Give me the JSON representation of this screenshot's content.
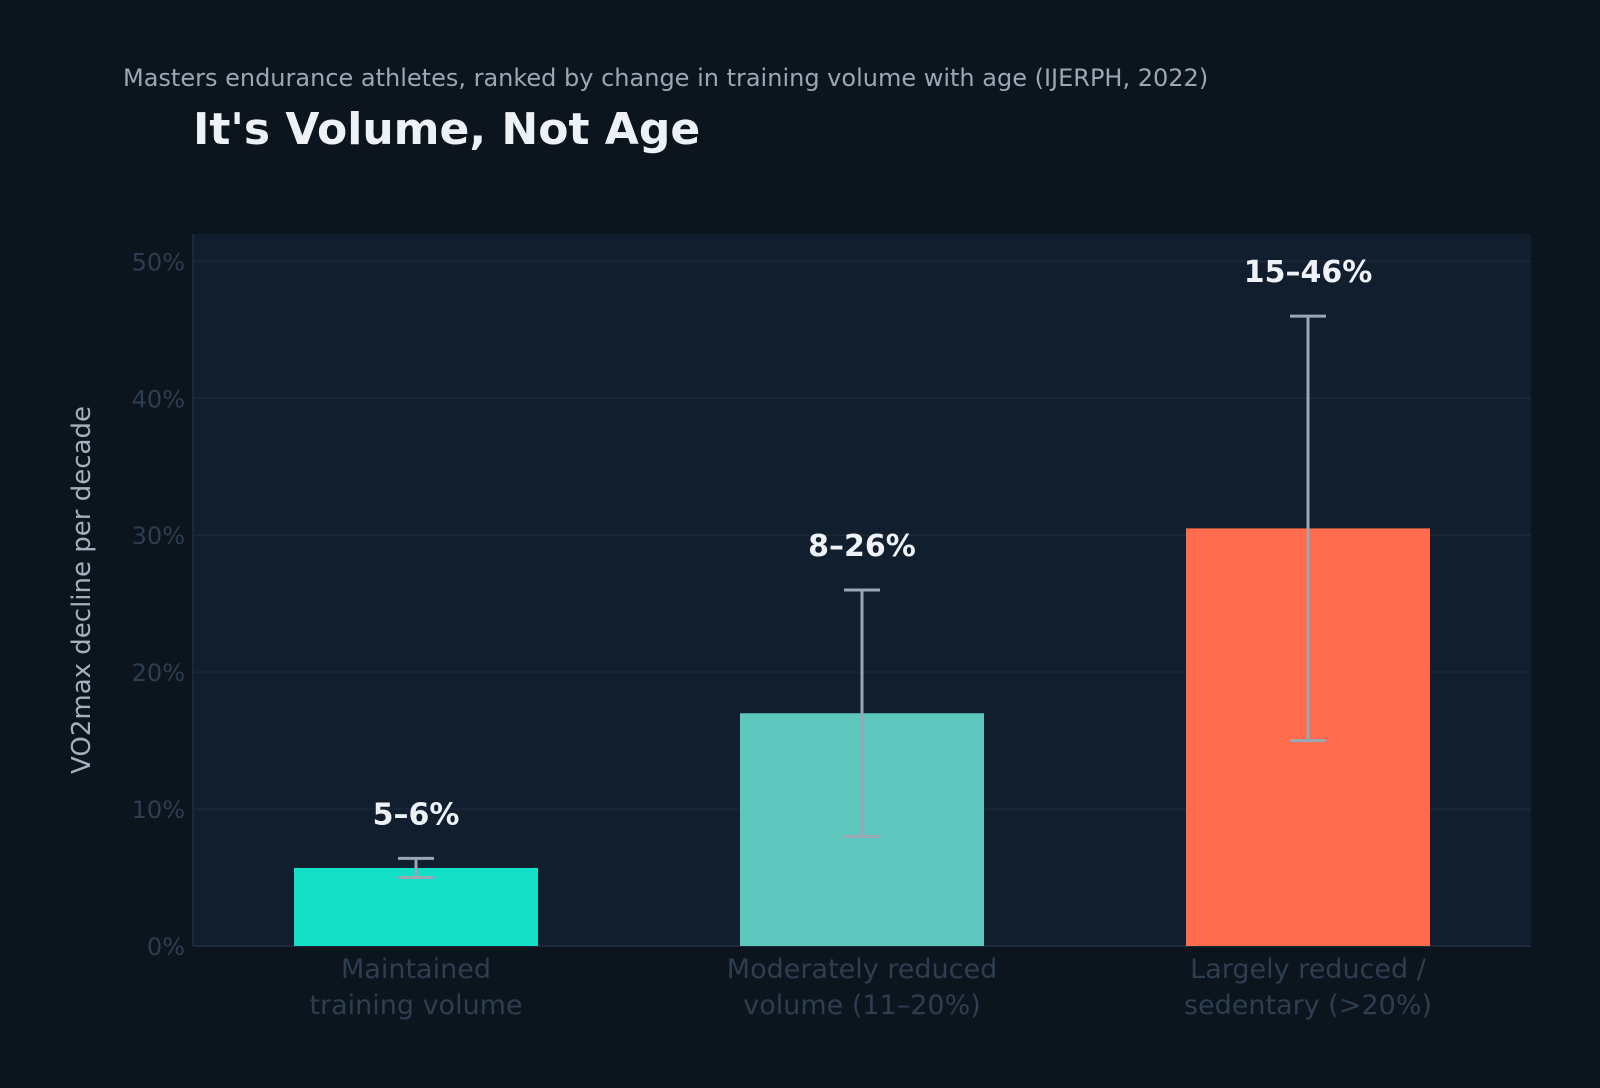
{
  "subtitle": "Masters endurance athletes, ranked by change in training volume with age (IJERPH, 2022)",
  "title": "It's Volume, Not Age",
  "colors": {
    "background": "#0c141e",
    "plot_area": "#111e2d",
    "grid": "#1a2838",
    "tick_text": "#2d3e50",
    "axis_label": "#a3b0bd",
    "error_bar": "#9aa7b4",
    "value_label": "#eef2f7"
  },
  "chart_data": {
    "type": "bar",
    "title": "It's Volume, Not Age",
    "subtitle": "Masters endurance athletes, ranked by change in training volume with age (IJERPH, 2022)",
    "xlabel": "",
    "ylabel": "VO2max decline per decade",
    "ylim": [
      0,
      52
    ],
    "yticks": [
      0,
      10,
      20,
      30,
      40,
      50
    ],
    "ytick_labels": [
      "0%",
      "10%",
      "20%",
      "30%",
      "40%",
      "50%"
    ],
    "grid": true,
    "categories": [
      [
        "Maintained",
        "training volume"
      ],
      [
        "Moderately reduced",
        "volume (11–20%)"
      ],
      [
        "Largely reduced /",
        "sedentary (>20%)"
      ]
    ],
    "values": [
      5.7,
      17,
      30.5
    ],
    "error_low": [
      5,
      8,
      15
    ],
    "error_high": [
      6.4,
      26,
      46
    ],
    "labels": [
      "5–6%",
      "8–26%",
      "15–46%"
    ],
    "bar_colors": [
      "#14e0c8",
      "#5ec8be",
      "#ff6b4d"
    ]
  }
}
